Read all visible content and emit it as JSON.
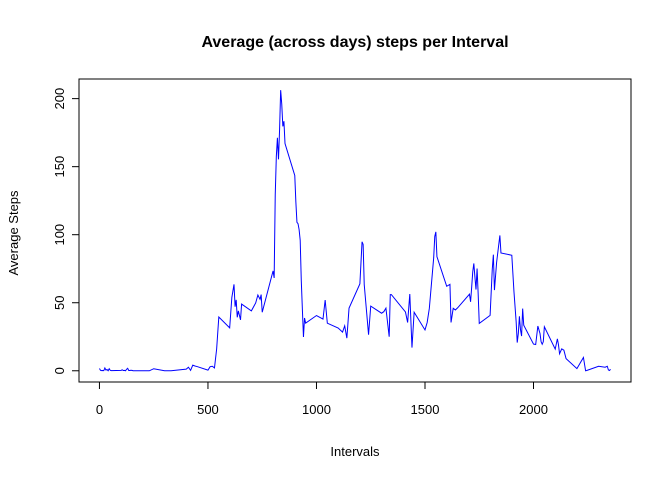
{
  "chart_data": {
    "type": "line",
    "title": "Average (across days) steps per Interval",
    "x_label": "Intervals",
    "y_label": "Average Steps",
    "x": [
      0,
      5,
      10,
      15,
      20,
      25,
      30,
      35,
      40,
      45,
      50,
      55,
      100,
      105,
      110,
      115,
      120,
      125,
      130,
      135,
      140,
      145,
      150,
      155,
      200,
      230,
      250,
      300,
      330,
      400,
      410,
      420,
      430,
      440,
      450,
      500,
      510,
      520,
      530,
      540,
      550,
      600,
      610,
      620,
      625,
      630,
      635,
      640,
      650,
      655,
      700,
      720,
      730,
      740,
      745,
      750,
      800,
      805,
      810,
      815,
      820,
      825,
      830,
      835,
      840,
      845,
      850,
      855,
      900,
      905,
      910,
      915,
      920,
      925,
      930,
      935,
      940,
      945,
      950,
      1000,
      1030,
      1040,
      1050,
      1100,
      1120,
      1130,
      1140,
      1150,
      1200,
      1210,
      1215,
      1220,
      1240,
      1250,
      1300,
      1310,
      1320,
      1335,
      1340,
      1345,
      1410,
      1420,
      1430,
      1440,
      1450,
      1500,
      1510,
      1520,
      1540,
      1545,
      1550,
      1555,
      1600,
      1615,
      1620,
      1630,
      1640,
      1650,
      1705,
      1710,
      1715,
      1720,
      1725,
      1730,
      1735,
      1740,
      1745,
      1750,
      1800,
      1810,
      1815,
      1820,
      1830,
      1845,
      1850,
      1900,
      1910,
      1920,
      1925,
      1930,
      1935,
      1940,
      1945,
      1950,
      1955,
      2000,
      2010,
      2020,
      2030,
      2035,
      2040,
      2045,
      2050,
      2100,
      2110,
      2115,
      2120,
      2130,
      2140,
      2150,
      2200,
      2230,
      2240,
      2245,
      2300,
      2330,
      2340,
      2345,
      2350,
      2355
    ],
    "values": [
      1.7,
      0.3,
      0.1,
      0.2,
      0.1,
      2.1,
      0.5,
      0.9,
      0,
      1.5,
      0.3,
      0.1,
      0.3,
      0.7,
      0.2,
      0.3,
      0,
      1.1,
      1.8,
      0.2,
      0.2,
      0.4,
      0.3,
      0,
      0,
      0,
      1.5,
      0,
      0,
      1.2,
      2.6,
      0.3,
      4.1,
      3.5,
      3.1,
      0.5,
      3,
      3.3,
      2.1,
      16,
      39.5,
      31.5,
      53.8,
      63.5,
      47.1,
      52.1,
      39.3,
      44,
      37.4,
      49,
      44,
      49.9,
      55.7,
      52.5,
      56,
      43,
      73.4,
      68.2,
      129.4,
      157.5,
      171.2,
      155.4,
      177.3,
      206.2,
      195.9,
      179.6,
      183.4,
      167,
      143.5,
      124,
      109.1,
      108.1,
      103.7,
      95.9,
      66.2,
      45.2,
      24.8,
      38.8,
      35,
      40.6,
      38,
      52,
      35,
      31.4,
      28.4,
      33,
      24,
      46,
      63.9,
      94.8,
      92.8,
      63.4,
      26.5,
      47.5,
      42.3,
      43.4,
      46,
      25,
      56,
      56,
      43.2,
      35.5,
      56.4,
      17,
      43,
      30,
      35.5,
      45.9,
      82.9,
      98.7,
      102.1,
      83.9,
      62.1,
      63.5,
      35.5,
      45.9,
      44.7,
      46.2,
      56.3,
      50.7,
      61.2,
      72.7,
      78.9,
      68.9,
      59.7,
      75.1,
      56.5,
      34.8,
      40.7,
      74.7,
      85.3,
      59.3,
      79.7,
      99.5,
      86.6,
      84.9,
      58,
      36.1,
      20.7,
      27.4,
      40,
      30.2,
      25.5,
      45.7,
      33.5,
      19.6,
      19.3,
      32.9,
      27.3,
      21.3,
      19.5,
      21.3,
      32.3,
      15.9,
      23.5,
      19.2,
      12.5,
      16.1,
      15.1,
      8.9,
      1.6,
      9.8,
      0,
      0.2,
      3.3,
      2.6,
      3.3,
      0.6,
      0.2,
      1.1
    ],
    "color": "#0000ff",
    "xlim": [
      -94.2,
      2449.2
    ],
    "xticks": [
      0,
      500,
      1000,
      1500,
      2000
    ],
    "ylim": [
      -8.25,
      214.42
    ],
    "yticks": [
      0,
      50,
      100,
      150,
      200
    ]
  }
}
